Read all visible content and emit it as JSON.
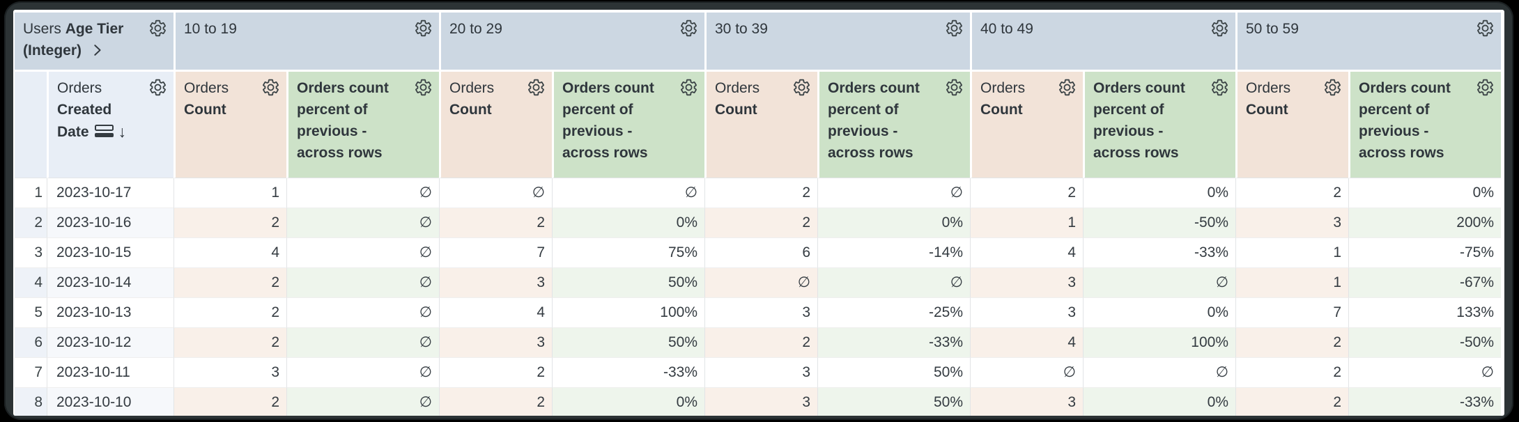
{
  "labels": {
    "view_users": "Users",
    "field_age_tier": "Age Tier (Integer)",
    "view_orders": "Orders",
    "field_created_date": "Created Date",
    "field_count": "Count",
    "pct_measure": "Orders count percent of previous - across rows",
    "sort_arrow": "↓",
    "null_symbol": "∅"
  },
  "table": {
    "pivot_dimension": "Users Age Tier (Integer)",
    "row_dimension": "Orders Created Date",
    "sort": "descending",
    "pivot_values": [
      "10 to 19",
      "20 to 29",
      "30 to 39",
      "40 to 49",
      "50 to 59"
    ],
    "measures_per_pivot": [
      "Orders Count",
      "Orders count percent of previous - across rows"
    ],
    "rows": [
      {
        "num": "1",
        "date": "2023-10-17",
        "values": [
          "1",
          "∅",
          "∅",
          "∅",
          "2",
          "∅",
          "2",
          "0%",
          "2",
          "0%"
        ]
      },
      {
        "num": "2",
        "date": "2023-10-16",
        "values": [
          "2",
          "∅",
          "2",
          "0%",
          "2",
          "0%",
          "1",
          "-50%",
          "3",
          "200%"
        ]
      },
      {
        "num": "3",
        "date": "2023-10-15",
        "values": [
          "4",
          "∅",
          "7",
          "75%",
          "6",
          "-14%",
          "4",
          "-33%",
          "1",
          "-75%"
        ]
      },
      {
        "num": "4",
        "date": "2023-10-14",
        "values": [
          "2",
          "∅",
          "3",
          "50%",
          "∅",
          "∅",
          "3",
          "∅",
          "1",
          "-67%"
        ]
      },
      {
        "num": "5",
        "date": "2023-10-13",
        "values": [
          "2",
          "∅",
          "4",
          "100%",
          "3",
          "-25%",
          "3",
          "0%",
          "7",
          "133%"
        ]
      },
      {
        "num": "6",
        "date": "2023-10-12",
        "values": [
          "2",
          "∅",
          "3",
          "50%",
          "2",
          "-33%",
          "4",
          "100%",
          "2",
          "-50%"
        ]
      },
      {
        "num": "7",
        "date": "2023-10-11",
        "values": [
          "3",
          "∅",
          "2",
          "-33%",
          "3",
          "50%",
          "∅",
          "∅",
          "2",
          "∅"
        ]
      },
      {
        "num": "8",
        "date": "2023-10-10",
        "values": [
          "2",
          "∅",
          "2",
          "0%",
          "3",
          "50%",
          "3",
          "0%",
          "2",
          "-33%"
        ]
      }
    ]
  },
  "colors": {
    "pivot_header_bg": "#ccd7e2",
    "dimension_header_bg": "#e8eef6",
    "count_header_bg": "#f2e3d8",
    "percent_header_bg": "#cde2c8",
    "band_count_bg": "#f9f0e9",
    "band_percent_bg": "#eef5ec",
    "band_number_bg": "#eef2f8",
    "text": "#343b41",
    "frame": "#2c3335"
  }
}
